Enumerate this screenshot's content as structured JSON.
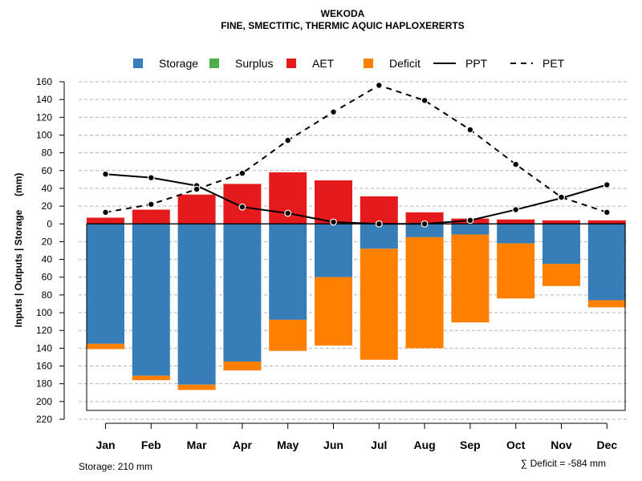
{
  "chart_data": {
    "type": "bar",
    "title": "WEKODA",
    "subtitle": "FINE, SMECTITIC, THERMIC AQUIC HAPLOXERERTS",
    "ylabel": "Inputs | Outputs | Storage     (mm)",
    "categories": [
      "Jan",
      "Feb",
      "Mar",
      "Apr",
      "May",
      "Jun",
      "Jul",
      "Aug",
      "Sep",
      "Oct",
      "Nov",
      "Dec"
    ],
    "ylim": [
      -220,
      160
    ],
    "yticks": [
      160,
      140,
      120,
      100,
      80,
      60,
      40,
      20,
      0,
      -20,
      -40,
      -60,
      -80,
      -100,
      -120,
      -140,
      -160,
      -180,
      -200,
      -220
    ],
    "ytick_labels": [
      "160",
      "140",
      "120",
      "100",
      "80",
      "60",
      "40",
      "20",
      "0",
      "20",
      "40",
      "60",
      "80",
      "100",
      "120",
      "140",
      "160",
      "180",
      "200",
      "220"
    ],
    "storage_capacity": 210,
    "grid": true,
    "legend_position": "top",
    "series": [
      {
        "name": "Storage",
        "kind": "bar",
        "color": "#377EB8",
        "values": [
          -135,
          -171,
          -181,
          -155,
          -108,
          -60,
          -28,
          -15,
          -12,
          -22,
          -45,
          -86
        ]
      },
      {
        "name": "Surplus",
        "kind": "bar",
        "color": "#4DAF4A",
        "values": [
          0,
          0,
          0,
          0,
          0,
          0,
          0,
          0,
          0,
          0,
          0,
          0
        ]
      },
      {
        "name": "AET",
        "kind": "bar",
        "color": "#E41A1C",
        "values": [
          7,
          16,
          33,
          45,
          58,
          49,
          31,
          13,
          6,
          5,
          4,
          4
        ]
      },
      {
        "name": "Deficit",
        "kind": "bar",
        "color": "#FF7F00",
        "values": [
          -6,
          -5,
          -6,
          -10,
          -35,
          -77,
          -125,
          -125,
          -99,
          -62,
          -25,
          -8
        ]
      },
      {
        "name": "PPT",
        "kind": "line",
        "dash": "solid",
        "color": "#000000",
        "values": [
          56,
          52,
          43,
          19,
          12,
          2,
          0,
          0,
          4,
          16,
          29,
          44
        ]
      },
      {
        "name": "PET",
        "kind": "line",
        "dash": "dashed",
        "color": "#000000",
        "values": [
          13,
          22,
          39,
          57,
          94,
          126,
          156,
          139,
          106,
          67,
          30,
          13
        ]
      }
    ],
    "footer_left": "Storage: 210 mm",
    "footer_right": "∑ Deficit = -584 mm"
  }
}
